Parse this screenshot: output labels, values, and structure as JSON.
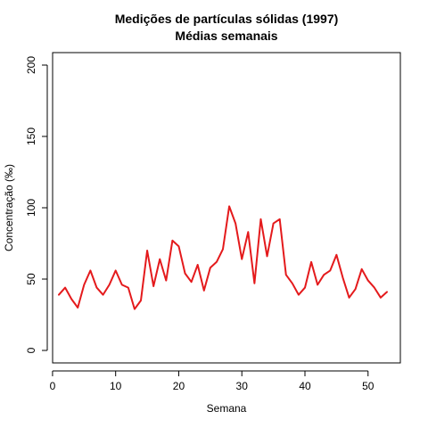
{
  "chart_data": {
    "type": "line",
    "title": "Medições de partículas sólidas (1997)",
    "subtitle": "Médias semanais",
    "xlabel": "Semana",
    "ylabel": "Concentração (‰)",
    "xlim": [
      0,
      55
    ],
    "ylim": [
      0,
      200
    ],
    "x_ticks": [
      0,
      10,
      20,
      30,
      40,
      50
    ],
    "y_ticks": [
      0,
      50,
      100,
      150,
      200
    ],
    "grid": false,
    "line_color": "#e41a1c",
    "series": [
      {
        "x": [
          1,
          2,
          3,
          4,
          5,
          6,
          7,
          8,
          9,
          10,
          11,
          12,
          13,
          14,
          15,
          16,
          17,
          18,
          19,
          20,
          21,
          22,
          23,
          24,
          25,
          26,
          27,
          28,
          29,
          30,
          31,
          32,
          33,
          34,
          35,
          36,
          37,
          38,
          39,
          40,
          41,
          42,
          43,
          44,
          45,
          46,
          47,
          48,
          49,
          50,
          51,
          52,
          53
        ],
        "values": [
          39,
          44,
          36,
          30,
          46,
          56,
          44,
          39,
          46,
          56,
          46,
          44,
          29,
          35,
          70,
          45,
          64,
          49,
          77,
          73,
          54,
          48,
          60,
          42,
          58,
          62,
          71,
          101,
          89,
          64,
          83,
          47,
          92,
          66,
          89,
          92,
          53,
          47,
          39,
          44,
          62,
          46,
          53,
          56,
          67,
          51,
          37,
          43,
          57,
          49,
          44,
          37,
          41
        ]
      }
    ]
  }
}
